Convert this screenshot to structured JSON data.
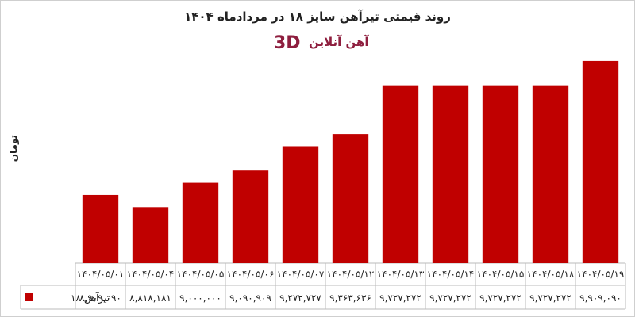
{
  "chart_data": {
    "type": "bar",
    "title": "روند قیمتی تیرآهن سایز ۱۸ در مردادماه ۱۴۰۴",
    "ylabel": "تومان",
    "xlabel": "",
    "ylim": [
      8400000,
      9950000
    ],
    "grid": false,
    "legend": "bottom-left",
    "categories": [
      "۱۴۰۴/۰۵/۰۱",
      "۱۴۰۴/۰۵/۰۴",
      "۱۴۰۴/۰۵/۰۵",
      "۱۴۰۴/۰۵/۰۶",
      "۱۴۰۴/۰۵/۰۷",
      "۱۴۰۴/۰۵/۱۲",
      "۱۴۰۴/۰۵/۱۳",
      "۱۴۰۴/۰۵/۱۴",
      "۱۴۰۴/۰۵/۱۵",
      "۱۴۰۴/۰۵/۱۸",
      "۱۴۰۴/۰۵/۱۹"
    ],
    "series": [
      {
        "name": "تیرآهن ۱۸",
        "color": "#c00000",
        "values": [
          8909090,
          8818181,
          9000000,
          9090909,
          9272727,
          9363636,
          9727272,
          9727272,
          9727272,
          9727272,
          9909090
        ],
        "value_labels": [
          "۸,۹۰۹,۰۹۰",
          "۸,۸۱۸,۱۸۱",
          "۹,۰۰۰,۰۰۰",
          "۹,۰۹۰,۹۰۹",
          "۹,۲۷۲,۷۲۷",
          "۹,۳۶۳,۶۳۶",
          "۹,۷۲۷,۲۷۲",
          "۹,۷۲۷,۲۷۲",
          "۹,۷۲۷,۲۷۲",
          "۹,۷۲۷,۲۷۲",
          "۹,۹۰۹,۰۹۰"
        ]
      }
    ]
  },
  "logo": {
    "text": "آهن آنلاین",
    "mark": "3D",
    "color": "#8e1e3e"
  }
}
